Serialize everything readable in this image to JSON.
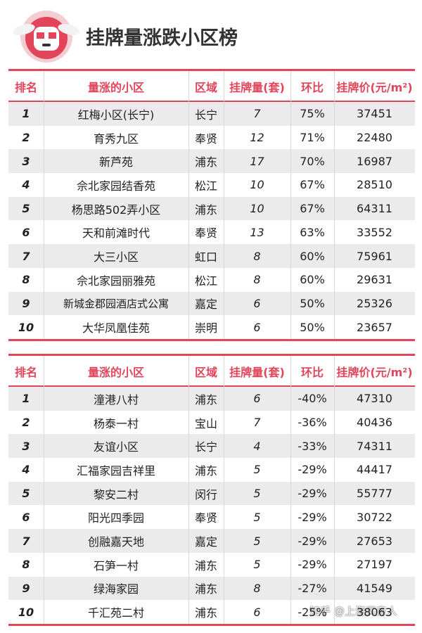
{
  "header": {
    "title": "挂牌量涨跌小区榜"
  },
  "tables": [
    {
      "columns": [
        "排名",
        "量涨的小区",
        "区域",
        "挂牌量(套)",
        "环比",
        "挂牌价(元/m²)"
      ],
      "rows": [
        [
          "1",
          "红梅小区(长宁)",
          "长宁",
          "7",
          "75%",
          "37451"
        ],
        [
          "2",
          "育秀九区",
          "奉贤",
          "12",
          "71%",
          "22480"
        ],
        [
          "3",
          "新芦苑",
          "浦东",
          "17",
          "70%",
          "16987"
        ],
        [
          "4",
          "佘北家园结香苑",
          "松江",
          "10",
          "67%",
          "28510"
        ],
        [
          "5",
          "杨思路502弄小区",
          "浦东",
          "10",
          "67%",
          "64311"
        ],
        [
          "6",
          "天和前滩时代",
          "奉贤",
          "13",
          "63%",
          "33552"
        ],
        [
          "7",
          "大三小区",
          "虹口",
          "8",
          "60%",
          "75961"
        ],
        [
          "8",
          "佘北家园丽雅苑",
          "松江",
          "8",
          "60%",
          "29631"
        ],
        [
          "9",
          "新城金郡园酒店式公寓",
          "嘉定",
          "6",
          "50%",
          "25326"
        ],
        [
          "10",
          "大华凤凰佳苑",
          "崇明",
          "6",
          "50%",
          "23657"
        ]
      ]
    },
    {
      "columns": [
        "排名",
        "量涨的小区",
        "区域",
        "挂牌量(套)",
        "环比",
        "挂牌价(元/m²)"
      ],
      "rows": [
        [
          "1",
          "潼港八村",
          "浦东",
          "6",
          "-40%",
          "47310"
        ],
        [
          "2",
          "杨泰一村",
          "宝山",
          "7",
          "-36%",
          "40436"
        ],
        [
          "3",
          "友谊小区",
          "长宁",
          "4",
          "-33%",
          "74311"
        ],
        [
          "4",
          "汇福家园吉祥里",
          "浦东",
          "5",
          "-29%",
          "44417"
        ],
        [
          "5",
          "黎安二村",
          "闵行",
          "5",
          "-29%",
          "55777"
        ],
        [
          "6",
          "阳光四季园",
          "奉贤",
          "5",
          "-29%",
          "30722"
        ],
        [
          "7",
          "创融嘉天地",
          "嘉定",
          "5",
          "-29%",
          "27653"
        ],
        [
          "8",
          "石笋一村",
          "浦东",
          "5",
          "-29%",
          "27197"
        ],
        [
          "9",
          "绿海家园",
          "浦东",
          "8",
          "-27%",
          "41549"
        ],
        [
          "10",
          "千汇苑二村",
          "浦东",
          "6",
          "-25%",
          "38063"
        ]
      ]
    }
  ],
  "watermark": "知乎 @上海买房人"
}
